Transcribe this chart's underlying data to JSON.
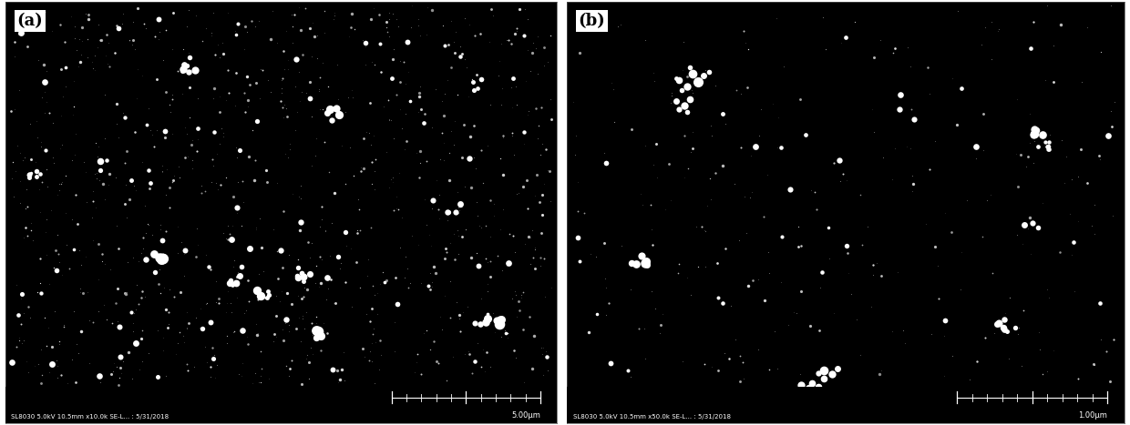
{
  "panel_a": {
    "label": "(a)",
    "microscope_text": "SL8030 5.0kV 10.5mm x10.0k SE-L... : 5/31/2018",
    "scale_text": "5.00μm",
    "num_tiny": 2000,
    "num_small": 400,
    "num_medium": 80,
    "num_large_clusters": 12,
    "seed": 7
  },
  "panel_b": {
    "label": "(b)",
    "microscope_text": "SL8030 5.0kV 10.5mm x50.0k SE-L... : 5/31/2018",
    "scale_text": "1.00μm",
    "num_tiny": 600,
    "num_small": 100,
    "num_medium": 30,
    "num_large_clusters": 4,
    "seed": 13
  },
  "fig_width": 12.4,
  "fig_height": 4.67,
  "dpi": 100,
  "label_fontsize": 13,
  "info_fontsize": 5.0,
  "scale_fontsize": 6.0
}
